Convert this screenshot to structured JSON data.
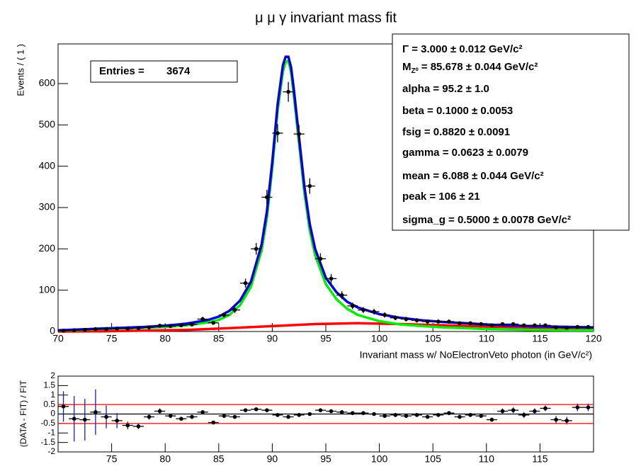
{
  "chart_data": [
    {
      "type": "line",
      "title": "μ μ γ invariant mass fit",
      "xlabel": "Invariant mass w/ NoElectronVeto photon (in GeV/c²)",
      "ylabel": "Events / ( 1 )",
      "xlim": [
        70,
        120
      ],
      "xticks": [
        70,
        75,
        80,
        85,
        90,
        95,
        100,
        105,
        110,
        115,
        120
      ],
      "ylim": [
        0,
        696
      ],
      "yticks": [
        0,
        100,
        200,
        300,
        400,
        500,
        600
      ],
      "entries": {
        "label": "Entries =",
        "value": 3674
      },
      "stats": [
        {
          "label": "Γ",
          "rest": " =  3.000 ± 0.012 GeV/c²"
        },
        {
          "label": "M",
          "sub": "Z⁰",
          "rest": " =  85.678 ± 0.044 GeV/c²"
        },
        {
          "label": "alpha",
          "rest": " =  95.2 ± 1.0"
        },
        {
          "label": "beta",
          "rest": " =  0.1000 ± 0.0053"
        },
        {
          "label": "fsig",
          "rest": " =  0.8820 ± 0.0091"
        },
        {
          "label": "gamma",
          "rest": " =  0.0623 ± 0.0079"
        },
        {
          "label": "mean",
          "rest": " =  6.088 ± 0.044 GeV/c²"
        },
        {
          "label": "peak",
          "rest": " =  106 ± 21"
        },
        {
          "label": "sigma_g",
          "rest": " =  0.5000 ± 0.0078 GeV/c²"
        }
      ],
      "data": {
        "color": "#000000",
        "bins": [
          70,
          71,
          72,
          73,
          74,
          75,
          76,
          77,
          78,
          79,
          80,
          81,
          82,
          83,
          84,
          85,
          86,
          87,
          88,
          89,
          90,
          91,
          92,
          93,
          94,
          95,
          96,
          97,
          98,
          99,
          100,
          101,
          102,
          103,
          104,
          105,
          106,
          107,
          108,
          109,
          110,
          111,
          112,
          113,
          114,
          115,
          116,
          117,
          118,
          119,
          120
        ],
        "values": [
          2,
          3,
          4,
          6,
          6,
          7,
          7,
          8,
          10,
          14,
          13,
          15,
          17,
          30,
          21,
          40,
          52,
          117,
          200,
          325,
          480,
          580,
          478,
          352,
          176,
          128,
          88,
          62,
          52,
          48,
          40,
          33,
          30,
          27,
          24,
          24,
          24,
          20,
          20,
          18,
          15,
          18,
          18,
          15,
          15,
          15,
          10,
          9,
          11,
          11
        ],
        "errors": [
          1.4,
          1.7,
          2,
          2.4,
          2.4,
          2.6,
          2.6,
          2.8,
          3.2,
          3.7,
          3.6,
          3.9,
          4.1,
          5.5,
          4.6,
          6.3,
          7.2,
          10.8,
          14.1,
          18,
          21.9,
          24.1,
          21.9,
          18.8,
          13.3,
          11.3,
          9.4,
          7.9,
          7.2,
          6.9,
          6.3,
          5.7,
          5.5,
          5.2,
          4.9,
          4.9,
          4.9,
          4.5,
          4.5,
          4.2,
          3.9,
          4.2,
          4.2,
          3.9,
          3.9,
          3.9,
          3.2,
          3,
          3.3,
          3.3
        ]
      },
      "curves": [
        {
          "color": "#ff0000",
          "x": [
            70,
            74,
            78,
            82,
            86,
            90,
            94,
            98,
            102,
            106,
            110,
            114,
            118,
            120
          ],
          "values": [
            0,
            0.5,
            2,
            4,
            8,
            13,
            18,
            20,
            18,
            15,
            12,
            10,
            8.5,
            8
          ]
        },
        {
          "color": "#00ee00",
          "x": [
            70,
            72,
            74,
            76,
            78,
            80,
            82,
            84,
            85,
            86,
            87,
            88,
            89,
            89.5,
            90,
            90.5,
            91,
            91.25,
            91.5,
            91.75,
            92,
            92.5,
            93,
            93.5,
            94,
            95,
            96,
            97,
            98,
            100,
            102,
            104,
            106,
            108,
            110,
            112,
            114,
            116,
            118,
            120
          ],
          "values": [
            3,
            4,
            6,
            8,
            9,
            11,
            15,
            22,
            28,
            40,
            64,
            108,
            196,
            275,
            395,
            535,
            630,
            652,
            655,
            628,
            575,
            455,
            335,
            245,
            185,
            115,
            78,
            55,
            40,
            25,
            17,
            13,
            10,
            8,
            6,
            5,
            4,
            3.5,
            3,
            3
          ]
        },
        {
          "color": "#0000dd",
          "x": [
            70,
            72,
            74,
            76,
            78,
            80,
            82,
            84,
            85,
            86,
            87,
            88,
            89,
            89.5,
            90,
            90.5,
            91,
            91.25,
            91.5,
            91.75,
            92,
            92.5,
            93,
            93.5,
            94,
            95,
            96,
            97,
            98,
            100,
            102,
            104,
            106,
            108,
            110,
            112,
            114,
            116,
            118,
            120
          ],
          "values": [
            3,
            5,
            7,
            9,
            11,
            14,
            19,
            28,
            36,
            50,
            75,
            120,
            210,
            290,
            410,
            550,
            645,
            665,
            665,
            640,
            590,
            470,
            350,
            260,
            200,
            130,
            95,
            72,
            58,
            42,
            33,
            27,
            23,
            20,
            17,
            15,
            13,
            12,
            11,
            10
          ]
        }
      ]
    },
    {
      "type": "scatter",
      "ylabel": "(DATA - FIT) / FIT",
      "xlim": [
        70,
        120
      ],
      "xticks": [
        75,
        80,
        85,
        90,
        95,
        100,
        105,
        110,
        115
      ],
      "ylim": [
        -2,
        2
      ],
      "yticks": [
        -2,
        -1.5,
        -1,
        -0.5,
        0,
        0.5,
        1,
        1.5,
        2
      ],
      "hlines": [
        {
          "value": 0.5,
          "color": "#ff0000"
        },
        {
          "value": -0.5,
          "color": "#ff0000"
        },
        {
          "value": 0,
          "color": "#000000"
        }
      ],
      "bins": [
        70,
        71,
        72,
        73,
        74,
        75,
        76,
        77,
        78,
        79,
        80,
        81,
        82,
        83,
        84,
        85,
        86,
        87,
        88,
        89,
        90,
        91,
        92,
        93,
        94,
        95,
        96,
        97,
        98,
        99,
        100,
        101,
        102,
        103,
        104,
        105,
        106,
        107,
        108,
        109,
        110,
        111,
        112,
        113,
        114,
        115,
        116,
        117,
        118,
        119,
        120
      ],
      "values": [
        0.4,
        -0.25,
        -0.3,
        0.1,
        -0.15,
        -0.35,
        -0.6,
        -0.65,
        -0.15,
        0.15,
        -0.1,
        -0.25,
        -0.15,
        0.1,
        -0.45,
        -0.1,
        -0.15,
        0.2,
        0.25,
        0.2,
        -0.05,
        -0.15,
        -0.05,
        0,
        0.2,
        0.15,
        0.1,
        0.05,
        0.05,
        0,
        -0.1,
        -0.05,
        -0.1,
        -0.05,
        -0.15,
        -0.05,
        0.05,
        -0.15,
        -0.05,
        -0.1,
        -0.3,
        0.15,
        0.2,
        -0.05,
        0.15,
        0.3,
        -0.3,
        -0.35,
        0.35,
        0.35
      ],
      "errors": [
        0.8,
        1.2,
        1.1,
        1.2,
        0.6,
        0.4,
        0.2,
        0.15,
        0.15,
        0.15,
        0.1,
        0.1,
        0.1,
        0.1,
        0.05,
        0.05,
        0.05,
        0.05,
        0.05,
        0.05,
        0.05,
        0.05,
        0.05,
        0.05,
        0.05,
        0.05,
        0.05,
        0.05,
        0.05,
        0.05,
        0.05,
        0.05,
        0.05,
        0.05,
        0.05,
        0.05,
        0.1,
        0.1,
        0.1,
        0.1,
        0.1,
        0.15,
        0.15,
        0.15,
        0.15,
        0.15,
        0.2,
        0.2,
        0.2,
        0.2
      ]
    }
  ]
}
